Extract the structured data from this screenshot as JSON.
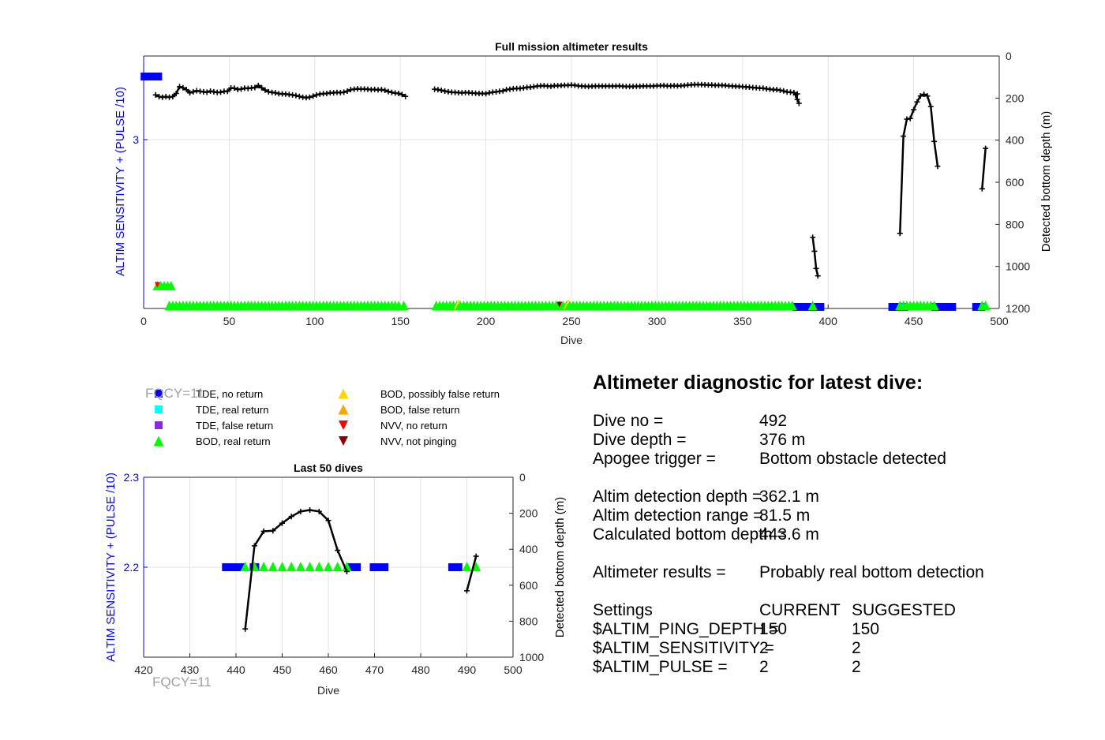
{
  "colors": {
    "tde_no_return": "#0000ff",
    "tde_real_return": "#00ffff",
    "tde_false_return": "#8a2be2",
    "bod_real_return": "#00ff00",
    "bod_possibly_false": "#ffd700",
    "bod_false": "#ffa500",
    "nvv_no_return": "#ff0000",
    "nvv_not_pinging": "#8b0000",
    "depth_line": "#000000",
    "left_axis": "#0000ff"
  },
  "chart_data": [
    {
      "id": "full",
      "type": "scatter",
      "title": "Full mission altimeter results",
      "xlabel": "Dive",
      "ylabel_left": "ALTIM SENSITIVITY + (PULSE /10)",
      "ylabel_right": "Detected bottom depth (m)",
      "xlim": [
        0,
        500
      ],
      "xticks": [
        "0",
        "50",
        "100",
        "150",
        "200",
        "250",
        "300",
        "350",
        "400",
        "450",
        "500"
      ],
      "xtick_values": [
        0,
        50,
        100,
        150,
        200,
        250,
        300,
        350,
        400,
        450,
        500
      ],
      "yticks_left": [
        "3"
      ],
      "yticks_right": [
        "0",
        "200",
        "400",
        "600",
        "800",
        "1000",
        "1200"
      ],
      "ylim_right": [
        0,
        1200
      ],
      "grid": true,
      "tde_no_return": [
        [
          1,
          2,
          3,
          4,
          5,
          6,
          7,
          8,
          382,
          383,
          384,
          385,
          386,
          387,
          388,
          392,
          393,
          394,
          395,
          438,
          439,
          441,
          444,
          463,
          464,
          465,
          466,
          467,
          468,
          469,
          470,
          471,
          472,
          487,
          488,
          489
        ],
        [
          0.1,
          0.1,
          0.1,
          0.1,
          0.1,
          0.1,
          0.1,
          0.1,
          1.2,
          1.2,
          1.2,
          1.2,
          1.2,
          1.2,
          1.2,
          1.2,
          1.2,
          1.2,
          1.2,
          1.2,
          1.2,
          1.2,
          1.2,
          1.2,
          1.2,
          1.2,
          1.2,
          1.2,
          1.2,
          1.2,
          1.2,
          1.2,
          1.2,
          1.2,
          1.2,
          1.2
        ]
      ],
      "bod_real_ranges": [
        [
          8,
          17,
          1.1
        ],
        [
          15,
          150,
          1.2
        ],
        [
          152,
          152,
          1.2
        ],
        [
          171,
          380,
          1.2
        ],
        [
          391,
          391,
          1.2
        ],
        [
          442,
          463,
          1.2
        ],
        [
          490,
          492,
          1.2
        ]
      ],
      "bod_possibly_false": [
        [
          183,
          247
        ],
        [
          1.2,
          1.2
        ]
      ],
      "nvv_not_pinging": [
        [
          8,
          243
        ],
        [
          1.1,
          1.2
        ]
      ],
      "depth_segments": [
        {
          "x": [
            7,
            9,
            11,
            13,
            15,
            17,
            19,
            21,
            23,
            25,
            27,
            29,
            31,
            33,
            35,
            37,
            39,
            41,
            43,
            45,
            47,
            49,
            51,
            53,
            55,
            57,
            59,
            61,
            63,
            65,
            67,
            69,
            71,
            73,
            75,
            77,
            79,
            81,
            83,
            85,
            87,
            89,
            91,
            93,
            95,
            97,
            99,
            101,
            103,
            105,
            107,
            109,
            111,
            113,
            115,
            117,
            119,
            121,
            123,
            125,
            127,
            129,
            131,
            133,
            135,
            137,
            139,
            141,
            143,
            145,
            147,
            149,
            151,
            153
          ],
          "y": [
            185,
            193,
            196,
            193,
            196,
            193,
            178,
            146,
            151,
            160,
            175,
            170,
            165,
            168,
            170,
            172,
            167,
            170,
            173,
            172,
            168,
            168,
            152,
            153,
            159,
            157,
            153,
            154,
            152,
            150,
            140,
            151,
            162,
            170,
            173,
            175,
            179,
            180,
            181,
            183,
            185,
            188,
            192,
            196,
            198,
            196,
            191,
            185,
            181,
            179,
            178,
            175,
            175,
            173,
            174,
            172,
            167,
            160,
            158,
            156,
            157,
            157,
            158,
            160,
            159,
            161,
            160,
            163,
            169,
            173,
            176,
            178,
            183,
            192
          ]
        },
        {
          "x": [
            170,
            172,
            174,
            176,
            178,
            180,
            182,
            184,
            186,
            188,
            190,
            192,
            194,
            196,
            198,
            200,
            202,
            204,
            206,
            208,
            210,
            212,
            214,
            216,
            218,
            220,
            222,
            224,
            226,
            228,
            230,
            232,
            234,
            236,
            238,
            240,
            242,
            244,
            246,
            248,
            250,
            252,
            254,
            256,
            258,
            260,
            262,
            264,
            266,
            268,
            270,
            272,
            274,
            276,
            278,
            280,
            282,
            284,
            286,
            288,
            290,
            292,
            294,
            296,
            298,
            300,
            302,
            304,
            306,
            308,
            310,
            312,
            314,
            316,
            318,
            320,
            322,
            324,
            326,
            328,
            330,
            332,
            334,
            336,
            338,
            340,
            342,
            344,
            346,
            348,
            350,
            352,
            354,
            356,
            358,
            360,
            362,
            364,
            366,
            368,
            370,
            372,
            374,
            376,
            378,
            380,
            382
          ],
          "y": [
            158,
            160,
            163,
            167,
            170,
            172,
            173,
            174,
            175,
            174,
            174,
            176,
            177,
            178,
            178,
            179,
            175,
            172,
            170,
            168,
            166,
            160,
            158,
            155,
            154,
            154,
            152,
            149,
            148,
            146,
            143,
            142,
            141,
            143,
            144,
            141,
            141,
            140,
            139,
            139,
            138,
            139,
            142,
            143,
            144,
            145,
            144,
            143,
            143,
            143,
            143,
            143,
            143,
            143,
            142,
            144,
            145,
            145,
            145,
            144,
            144,
            143,
            143,
            143,
            143,
            141,
            141,
            140,
            142,
            142,
            141,
            142,
            141,
            140,
            138,
            137,
            136,
            136,
            136,
            137,
            138,
            138,
            139,
            139,
            139,
            140,
            142,
            143,
            144,
            145,
            146,
            147,
            148,
            150,
            151,
            153,
            153,
            156,
            158,
            160,
            160,
            163,
            166,
            171,
            172,
            174,
            180
          ]
        },
        {
          "x": [
            381,
            382,
            383
          ],
          "y": [
            185,
            206,
            225
          ]
        },
        {
          "x": [
            391,
            392,
            393,
            394
          ],
          "y": [
            862,
            928,
            1010,
            1045
          ]
        },
        {
          "x": [
            442,
            444,
            446,
            448,
            450,
            452,
            454,
            456,
            458,
            460,
            462,
            464
          ],
          "y": [
            843,
            381,
            300,
            297,
            255,
            218,
            190,
            182,
            190,
            240,
            406,
            524
          ]
        },
        {
          "x": [
            490,
            492
          ],
          "y": [
            631,
            439
          ]
        }
      ]
    },
    {
      "id": "last50",
      "type": "scatter",
      "title": "Last 50 dives",
      "xlabel": "Dive",
      "ylabel_left": "ALTIM SENSITIVITY + (PULSE /10)",
      "ylabel_right": "Detected bottom depth (m)",
      "xlim": [
        420,
        500
      ],
      "xticks": [
        "420",
        "430",
        "440",
        "450",
        "460",
        "470",
        "480",
        "490",
        "500"
      ],
      "xtick_values": [
        420,
        430,
        440,
        450,
        460,
        470,
        480,
        490,
        500
      ],
      "yticks_left": [
        "2.3",
        "2.2"
      ],
      "ylim_left": [
        2.1,
        2.3
      ],
      "yticks_right": [
        "0",
        "200",
        "400",
        "600",
        "800",
        "1000"
      ],
      "ylim_right": [
        0,
        1000
      ],
      "grid": true,
      "tde_no_return": [
        [
          438,
          439,
          440,
          441,
          444,
          465,
          466,
          470,
          471,
          472,
          487,
          488
        ],
        [
          2.2,
          2.2,
          2.2,
          2.2,
          2.2,
          2.2,
          2.2,
          2.2,
          2.2,
          2.2,
          2.2,
          2.2
        ]
      ],
      "bod_real_return": [
        [
          442,
          444,
          446,
          448,
          450,
          452,
          454,
          456,
          458,
          460,
          462,
          464,
          490,
          492
        ],
        [
          2.2,
          2.2,
          2.2,
          2.2,
          2.2,
          2.2,
          2.2,
          2.2,
          2.2,
          2.2,
          2.2,
          2.2,
          2.2,
          2.2
        ]
      ],
      "depth_segments": [
        {
          "x": [
            442,
            444,
            446,
            448,
            450,
            452,
            454,
            456,
            458,
            460,
            462,
            464
          ],
          "y": [
            843,
            381,
            300,
            297,
            255,
            218,
            190,
            182,
            190,
            240,
            406,
            524
          ]
        },
        {
          "x": [
            490,
            492
          ],
          "y": [
            631,
            439
          ]
        }
      ]
    }
  ],
  "legend": [
    {
      "label": "TDE, no return",
      "marker": "square",
      "color": "#0000ff"
    },
    {
      "label": "TDE, real return",
      "marker": "square",
      "color": "#00ffff"
    },
    {
      "label": "TDE, false return",
      "marker": "square",
      "color": "#8a2be2"
    },
    {
      "label": "BOD, real return",
      "marker": "triangle-up",
      "color": "#00ff00"
    },
    {
      "label": "BOD, possibly false return",
      "marker": "triangle-up",
      "color": "#ffd700"
    },
    {
      "label": "BOD, false return",
      "marker": "triangle-up",
      "color": "#ffa500"
    },
    {
      "label": "NVV, no return",
      "marker": "triangle-down",
      "color": "#ff0000"
    },
    {
      "label": "NVV, not pinging",
      "marker": "triangle-down",
      "color": "#8b0000"
    }
  ],
  "fqcy_label": "FQCY=11",
  "diagnostic": {
    "title": "Altimeter diagnostic for latest dive:",
    "rows": [
      {
        "label": "Dive no =",
        "value": "492"
      },
      {
        "label": "Dive depth =",
        "value": "376 m"
      },
      {
        "label": "Apogee trigger =",
        "value": "Bottom obstacle detected"
      },
      {
        "label": "Altim detection depth =",
        "value": "362.1 m"
      },
      {
        "label": "Altim detection range =",
        "value": "81.5 m"
      },
      {
        "label": "Calculated bottom depth =",
        "value": "443.6 m"
      },
      {
        "label": "Altimeter results =",
        "value": "Probably real bottom detection"
      }
    ],
    "settings_header": {
      "label": "Settings",
      "current": "CURRENT",
      "suggested": "SUGGESTED"
    },
    "settings": [
      {
        "label": "$ALTIM_PING_DEPTH =",
        "current": "150",
        "suggested": "150"
      },
      {
        "label": "$ALTIM_SENSITIVITY =",
        "current": "2",
        "suggested": "2"
      },
      {
        "label": "$ALTIM_PULSE =",
        "current": "2",
        "suggested": "2"
      }
    ]
  }
}
